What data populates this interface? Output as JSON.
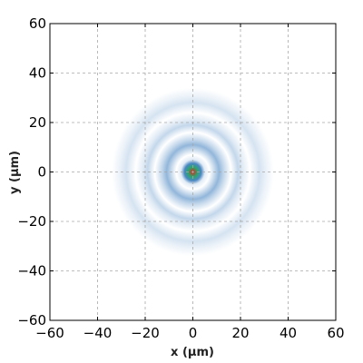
{
  "chart_data": {
    "type": "heatmap",
    "title": "",
    "xlabel": "x (μm)",
    "ylabel": "y (μm)",
    "xlim": [
      -60,
      60
    ],
    "ylim": [
      -60,
      60
    ],
    "xticks": [
      -60,
      -40,
      -20,
      0,
      20,
      40,
      60
    ],
    "yticks": [
      -60,
      -40,
      -20,
      0,
      20,
      40,
      60
    ],
    "x_tick_labels": [
      "−60",
      "−40",
      "−20",
      "0",
      "20",
      "40",
      "60"
    ],
    "y_tick_labels": [
      "−60",
      "−40",
      "−20",
      "0",
      "20",
      "40",
      "60"
    ],
    "grid": true,
    "colormap": [
      "#ffffff",
      "#4a86c2",
      "#2aa66f",
      "#f2e33a",
      "#d7281e"
    ],
    "center": [
      0,
      0
    ],
    "profile": [
      {
        "r": 0,
        "intensity": 1.0
      },
      {
        "r": 2,
        "intensity": 0.55
      },
      {
        "r": 3.5,
        "intensity": 0.3
      },
      {
        "r": 5,
        "intensity": 0.05
      },
      {
        "r": 7,
        "intensity": 0.0
      },
      {
        "r": 11,
        "intensity": 0.18
      },
      {
        "r": 13,
        "intensity": 0.1
      },
      {
        "r": 16,
        "intensity": 0.0
      },
      {
        "r": 19,
        "intensity": 0.1
      },
      {
        "r": 21,
        "intensity": 0.05
      },
      {
        "r": 24,
        "intensity": 0.0
      },
      {
        "r": 28,
        "intensity": 0.07
      },
      {
        "r": 31,
        "intensity": 0.03
      },
      {
        "r": 34,
        "intensity": 0.0
      },
      {
        "r": 60,
        "intensity": 0.0
      }
    ]
  }
}
